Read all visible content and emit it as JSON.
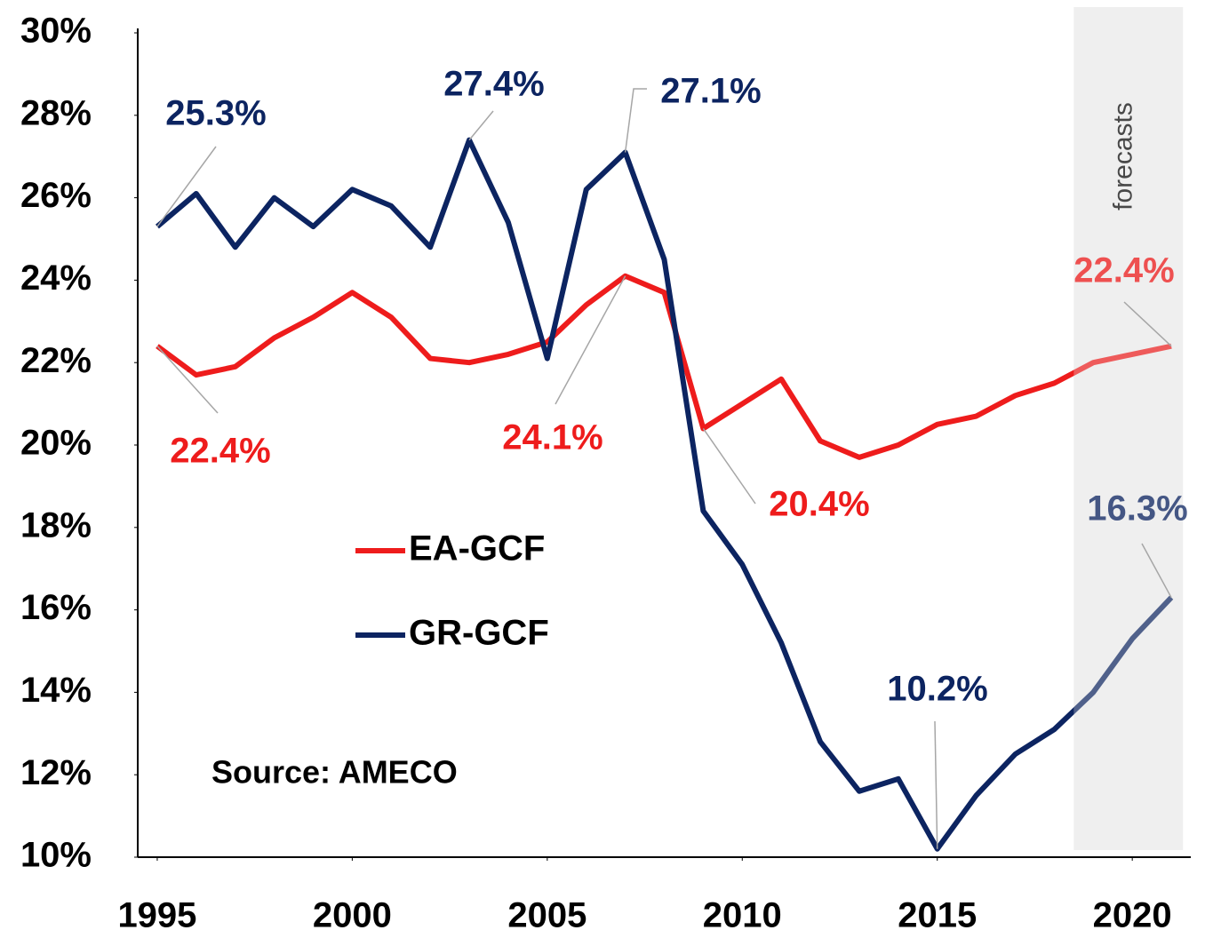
{
  "chart_data": {
    "type": "line",
    "x": [
      1995,
      1996,
      1997,
      1998,
      1999,
      2000,
      2001,
      2002,
      2003,
      2004,
      2005,
      2006,
      2007,
      2008,
      2009,
      2010,
      2011,
      2012,
      2013,
      2014,
      2015,
      2016,
      2017,
      2018,
      2019,
      2020,
      2021
    ],
    "series": [
      {
        "name": "EA-GCF",
        "color": "#ee1c1c",
        "values": [
          22.4,
          21.7,
          21.9,
          22.6,
          23.1,
          23.7,
          23.1,
          22.1,
          22.0,
          22.2,
          22.5,
          23.4,
          24.1,
          23.7,
          20.4,
          21.0,
          21.6,
          20.1,
          19.7,
          20.0,
          20.5,
          20.7,
          21.2,
          21.5,
          22.0,
          22.2,
          22.4
        ],
        "value_labels": [
          "22.4%",
          null,
          null,
          null,
          null,
          null,
          null,
          null,
          null,
          null,
          null,
          null,
          "24.1%",
          null,
          "20.4%",
          null,
          null,
          null,
          null,
          null,
          null,
          null,
          null,
          null,
          null,
          null,
          "22.4%"
        ]
      },
      {
        "name": "GR-GCF",
        "color": "#0c2461",
        "values": [
          25.3,
          26.1,
          24.8,
          26.0,
          25.3,
          26.2,
          25.8,
          24.8,
          27.4,
          25.4,
          22.1,
          26.2,
          27.1,
          24.5,
          18.4,
          17.1,
          15.2,
          12.8,
          11.6,
          11.9,
          10.2,
          11.5,
          12.5,
          13.1,
          14.0,
          15.3,
          16.3
        ],
        "value_labels": [
          "25.3%",
          null,
          null,
          null,
          null,
          null,
          null,
          null,
          "27.4%",
          null,
          null,
          null,
          "27.1%",
          null,
          null,
          null,
          null,
          null,
          null,
          null,
          "10.2%",
          null,
          null,
          null,
          null,
          null,
          "16.3%"
        ]
      }
    ],
    "xlim": [
      1994.5,
      2021.5
    ],
    "xticks": [
      1995,
      2000,
      2005,
      2010,
      2015,
      2020
    ],
    "ylim": [
      10,
      30
    ],
    "yticks": [
      {
        "value": 10,
        "label": "10%"
      },
      {
        "value": 12,
        "label": "12%"
      },
      {
        "value": 14,
        "label": "14%"
      },
      {
        "value": 16,
        "label": "16%"
      },
      {
        "value": 18,
        "label": "18%"
      },
      {
        "value": 20,
        "label": "20%"
      },
      {
        "value": 22,
        "label": "22%"
      },
      {
        "value": 24,
        "label": "24%"
      },
      {
        "value": 26,
        "label": "26%"
      },
      {
        "value": 28,
        "label": "28%"
      },
      {
        "value": 30,
        "label": "30%"
      }
    ],
    "forecast": {
      "label": "forecasts",
      "range": [
        2018.5,
        2021.3
      ]
    },
    "annotation": "Source: AMECO",
    "grid": false
  }
}
